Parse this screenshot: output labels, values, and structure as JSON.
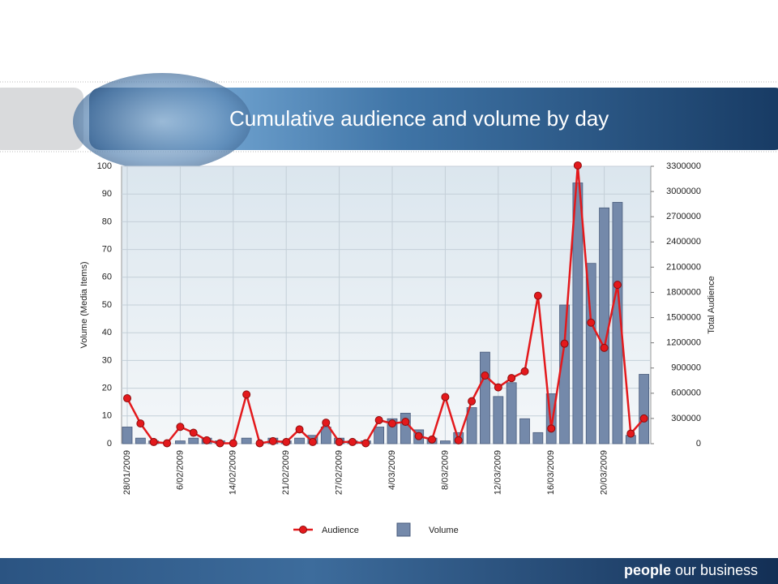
{
  "chart_data": {
    "type": "combo",
    "title": "Cumulative audience and volume by day",
    "categories": [
      "28/01/2009",
      null,
      null,
      null,
      "6/02/2009",
      null,
      null,
      null,
      "14/02/2009",
      null,
      null,
      null,
      "21/02/2009",
      null,
      null,
      null,
      "27/02/2009",
      null,
      null,
      null,
      "4/03/2009",
      null,
      null,
      null,
      "8/03/2009",
      null,
      null,
      null,
      "12/03/2009",
      null,
      null,
      null,
      "16/03/2009",
      null,
      null,
      null,
      "20/03/2009",
      null,
      null,
      null
    ],
    "series": [
      {
        "name": "Audience",
        "type": "line",
        "axis": "y2",
        "color": "#e3191c",
        "values": [
          540000,
          240000,
          20000,
          5000,
          200000,
          130000,
          40000,
          5000,
          5000,
          585000,
          5000,
          30000,
          20000,
          170000,
          20000,
          250000,
          20000,
          20000,
          5000,
          280000,
          240000,
          260000,
          90000,
          50000,
          555000,
          40000,
          505000,
          810000,
          670000,
          780000,
          860000,
          1760000,
          180000,
          1190000,
          3310000,
          1440000,
          1140000,
          1890000,
          120000,
          300000
        ]
      },
      {
        "name": "Volume",
        "type": "bar",
        "color": "#7489aa",
        "values": [
          6,
          2,
          1,
          0,
          1,
          2,
          2,
          1,
          0,
          2,
          0,
          2,
          1,
          2,
          3,
          6,
          2,
          1,
          1,
          6,
          9,
          11,
          5,
          2,
          1,
          4,
          13,
          33,
          17,
          22,
          9,
          4,
          18,
          50,
          94,
          65,
          85,
          87,
          3,
          25
        ]
      }
    ],
    "ylabel": "Volume (Media Items)",
    "y2label": "Total Audience",
    "ylim": [
      0,
      100
    ],
    "yticks": [
      0,
      10,
      20,
      30,
      40,
      50,
      60,
      70,
      80,
      90,
      100
    ],
    "y2lim": [
      0,
      3300000
    ],
    "y2ticks": [
      0,
      300000,
      600000,
      900000,
      1200000,
      1500000,
      1800000,
      2100000,
      2400000,
      2700000,
      3000000,
      3300000
    ],
    "grid": true,
    "legend": "bottom"
  },
  "footer": [
    "people",
    "our business"
  ]
}
